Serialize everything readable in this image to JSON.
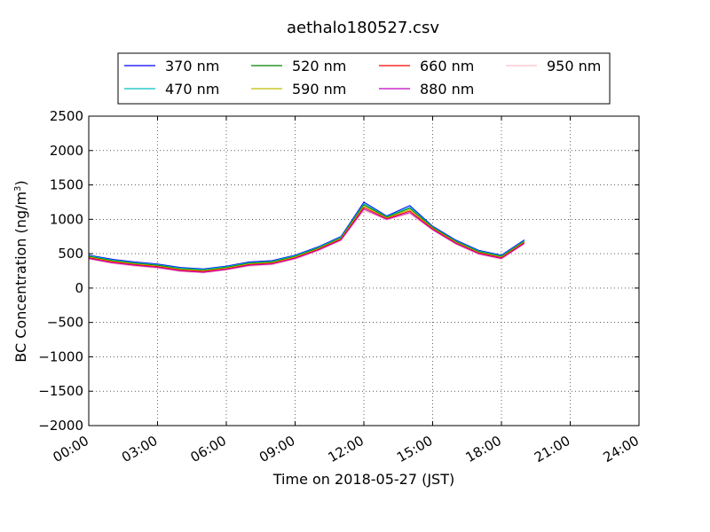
{
  "chart_data": {
    "type": "line",
    "title": "aethalo180527.csv",
    "xlabel": "Time on 2018-05-27 (JST)",
    "ylabel": "BC Concentration (ng/m",
    "ylabel_superscript": "3",
    "ylabel_suffix": ")",
    "xlim": [
      "00:00",
      "24:00"
    ],
    "ylim": [
      -2000,
      2500
    ],
    "x_ticks": [
      "00:00",
      "03:00",
      "06:00",
      "09:00",
      "12:00",
      "15:00",
      "18:00",
      "21:00",
      "24:00"
    ],
    "y_ticks": [
      "2500",
      "2000",
      "1500",
      "1000",
      "500",
      "0",
      "−500",
      "−1000",
      "−1500",
      "−2000"
    ],
    "grid": true,
    "legend_placement": "top-center",
    "series": [
      {
        "name": "370 nm",
        "color": "#0000ff",
        "x": [
          "00:00",
          "01:00",
          "02:00",
          "03:00",
          "04:00",
          "05:00",
          "06:00",
          "07:00",
          "08:00",
          "09:00",
          "10:00",
          "11:00",
          "12:00",
          "13:00",
          "14:00",
          "15:00",
          "16:00",
          "17:00",
          "18:00",
          "19:00"
        ],
        "y": [
          480,
          420,
          380,
          350,
          300,
          280,
          320,
          380,
          400,
          480,
          600,
          750,
          1250,
          1050,
          1200,
          900,
          700,
          550,
          480,
          700
        ]
      },
      {
        "name": "470 nm",
        "color": "#00bfbf",
        "x": [
          "00:00",
          "01:00",
          "02:00",
          "03:00",
          "04:00",
          "05:00",
          "06:00",
          "07:00",
          "08:00",
          "09:00",
          "10:00",
          "11:00",
          "12:00",
          "13:00",
          "14:00",
          "15:00",
          "16:00",
          "17:00",
          "18:00",
          "19:00"
        ],
        "y": [
          470,
          410,
          370,
          340,
          290,
          270,
          310,
          370,
          390,
          470,
          590,
          740,
          1230,
          1040,
          1180,
          890,
          690,
          540,
          470,
          690
        ]
      },
      {
        "name": "520 nm",
        "color": "#008000",
        "x": [
          "00:00",
          "01:00",
          "02:00",
          "03:00",
          "04:00",
          "05:00",
          "06:00",
          "07:00",
          "08:00",
          "09:00",
          "10:00",
          "11:00",
          "12:00",
          "13:00",
          "14:00",
          "15:00",
          "16:00",
          "17:00",
          "18:00",
          "19:00"
        ],
        "y": [
          460,
          400,
          360,
          330,
          280,
          260,
          300,
          360,
          380,
          460,
          580,
          730,
          1210,
          1030,
          1160,
          880,
          680,
          530,
          460,
          680
        ]
      },
      {
        "name": "590 nm",
        "color": "#bfbf00",
        "x": [
          "00:00",
          "01:00",
          "02:00",
          "03:00",
          "04:00",
          "05:00",
          "06:00",
          "07:00",
          "08:00",
          "09:00",
          "10:00",
          "11:00",
          "12:00",
          "13:00",
          "14:00",
          "15:00",
          "16:00",
          "17:00",
          "18:00",
          "19:00"
        ],
        "y": [
          450,
          390,
          350,
          320,
          270,
          250,
          290,
          350,
          370,
          450,
          570,
          720,
          1190,
          1020,
          1140,
          870,
          670,
          520,
          450,
          670
        ]
      },
      {
        "name": "660 nm",
        "color": "#ff0000",
        "x": [
          "00:00",
          "01:00",
          "02:00",
          "03:00",
          "04:00",
          "05:00",
          "06:00",
          "07:00",
          "08:00",
          "09:00",
          "10:00",
          "11:00",
          "12:00",
          "13:00",
          "14:00",
          "15:00",
          "16:00",
          "17:00",
          "18:00",
          "19:00"
        ],
        "y": [
          440,
          380,
          340,
          310,
          260,
          240,
          280,
          340,
          360,
          440,
          560,
          710,
          1170,
          1010,
          1120,
          860,
          660,
          510,
          440,
          660
        ]
      },
      {
        "name": "880 nm",
        "color": "#bf00bf",
        "x": [
          "00:00",
          "01:00",
          "02:00",
          "03:00",
          "04:00",
          "05:00",
          "06:00",
          "07:00",
          "08:00",
          "09:00",
          "10:00",
          "11:00",
          "12:00",
          "13:00",
          "14:00",
          "15:00",
          "16:00",
          "17:00",
          "18:00",
          "19:00"
        ],
        "y": [
          430,
          370,
          330,
          300,
          250,
          230,
          270,
          330,
          350,
          430,
          550,
          700,
          1150,
          1000,
          1100,
          850,
          650,
          500,
          430,
          650
        ]
      },
      {
        "name": "950 nm",
        "color": "#ffc0cb",
        "x": [
          "00:00",
          "01:00",
          "02:00",
          "03:00",
          "04:00",
          "05:00",
          "06:00",
          "07:00",
          "08:00",
          "09:00",
          "10:00",
          "11:00",
          "12:00",
          "13:00",
          "14:00",
          "15:00",
          "16:00",
          "17:00",
          "18:00",
          "19:00"
        ],
        "y": [
          420,
          360,
          320,
          290,
          240,
          220,
          260,
          320,
          340,
          420,
          540,
          690,
          1130,
          990,
          1080,
          840,
          640,
          490,
          420,
          640
        ]
      }
    ]
  }
}
